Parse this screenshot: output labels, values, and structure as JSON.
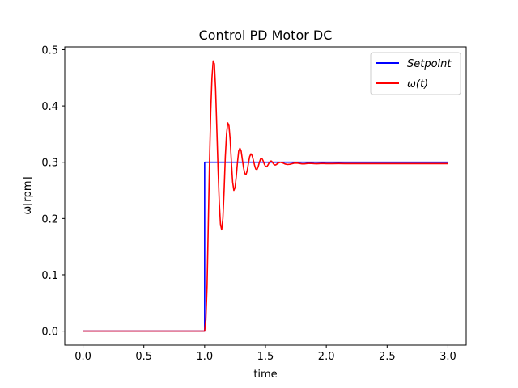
{
  "chart_data": {
    "type": "line",
    "title": "Control PD Motor DC",
    "xlabel": "time",
    "ylabel": "ω[rpm]",
    "xlim": [
      -0.15,
      3.15
    ],
    "ylim": [
      -0.025,
      0.505
    ],
    "x_ticks": [
      0.0,
      0.5,
      1.0,
      1.5,
      2.0,
      2.5,
      3.0
    ],
    "x_tick_labels": [
      "0.0",
      "0.5",
      "1.0",
      "1.5",
      "2.0",
      "2.5",
      "3.0"
    ],
    "y_ticks": [
      0.0,
      0.1,
      0.2,
      0.3,
      0.4,
      0.5
    ],
    "y_tick_labels": [
      "0.0",
      "0.1",
      "0.2",
      "0.3",
      "0.4",
      "0.5"
    ],
    "grid": false,
    "legend_position": "top-right",
    "series": [
      {
        "name": "Setpoint",
        "color": "#0000ff",
        "x": [
          0.0,
          1.0,
          1.0,
          3.0
        ],
        "y": [
          0.0,
          0.0,
          0.3,
          0.3
        ]
      },
      {
        "name": "ω(t)",
        "color": "#ff0000",
        "x": [
          0.0,
          1.0,
          1.01,
          1.02,
          1.03,
          1.04,
          1.05,
          1.06,
          1.07,
          1.08,
          1.09,
          1.1,
          1.11,
          1.12,
          1.13,
          1.14,
          1.15,
          1.16,
          1.17,
          1.18,
          1.19,
          1.2,
          1.21,
          1.22,
          1.23,
          1.24,
          1.25,
          1.26,
          1.27,
          1.28,
          1.29,
          1.3,
          1.31,
          1.32,
          1.33,
          1.34,
          1.35,
          1.36,
          1.37,
          1.38,
          1.39,
          1.4,
          1.41,
          1.42,
          1.43,
          1.44,
          1.45,
          1.46,
          1.47,
          1.48,
          1.49,
          1.5,
          1.51,
          1.52,
          1.53,
          1.54,
          1.55,
          1.56,
          1.57,
          1.58,
          1.59,
          1.6,
          1.62,
          1.64,
          1.66,
          1.68,
          1.7,
          1.72,
          1.74,
          1.76,
          1.78,
          1.8,
          1.82,
          1.84,
          1.86,
          1.88,
          1.9,
          1.92,
          1.94,
          1.96,
          1.98,
          2.0,
          2.05,
          2.1,
          2.15,
          2.2,
          2.25,
          2.3,
          2.4,
          2.5,
          2.6,
          2.7,
          2.8,
          2.9,
          3.0
        ],
        "y": [
          0.0,
          0.0,
          0.02,
          0.08,
          0.19,
          0.3,
          0.39,
          0.45,
          0.48,
          0.475,
          0.43,
          0.36,
          0.29,
          0.23,
          0.19,
          0.18,
          0.2,
          0.25,
          0.31,
          0.35,
          0.37,
          0.365,
          0.34,
          0.3,
          0.265,
          0.25,
          0.255,
          0.275,
          0.3,
          0.32,
          0.325,
          0.32,
          0.305,
          0.29,
          0.28,
          0.278,
          0.285,
          0.298,
          0.31,
          0.315,
          0.312,
          0.304,
          0.295,
          0.288,
          0.287,
          0.292,
          0.3,
          0.306,
          0.307,
          0.303,
          0.297,
          0.293,
          0.292,
          0.295,
          0.299,
          0.302,
          0.302,
          0.299,
          0.296,
          0.295,
          0.296,
          0.298,
          0.3,
          0.299,
          0.297,
          0.296,
          0.2965,
          0.2975,
          0.2985,
          0.2985,
          0.2978,
          0.2972,
          0.2972,
          0.2977,
          0.298,
          0.2978,
          0.2975,
          0.2974,
          0.2976,
          0.2978,
          0.2977,
          0.2975,
          0.2976,
          0.2977,
          0.2976,
          0.2976,
          0.2976,
          0.2976,
          0.2976,
          0.2976,
          0.2976,
          0.2976,
          0.2976,
          0.2976,
          0.2976
        ]
      }
    ]
  }
}
